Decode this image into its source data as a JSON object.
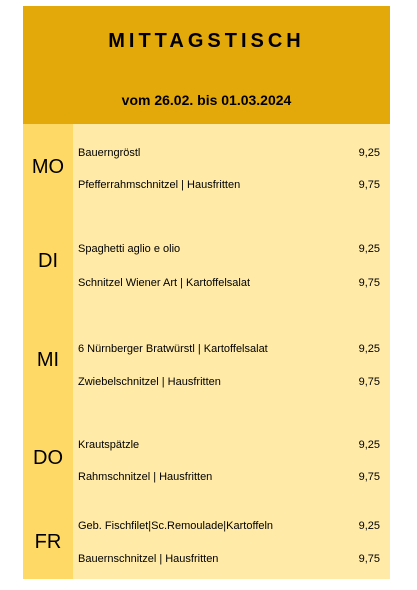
{
  "header": {
    "title": "MITTAGSTISCH",
    "subtitle": "vom 26.02. bis 01.03.2024"
  },
  "days": [
    {
      "day": "MO",
      "items": [
        {
          "name": "Bauerngröstl",
          "price": "9,25"
        },
        {
          "name": "Pfefferrahmschnitzel | Hausfritten",
          "price": "9,75"
        }
      ]
    },
    {
      "day": "DI",
      "items": [
        {
          "name": "Spaghetti aglio e olio",
          "price": "9,25"
        },
        {
          "name": "Schnitzel Wiener Art | Kartoffelsalat",
          "price": "9,75"
        }
      ]
    },
    {
      "day": "MI",
      "items": [
        {
          "name": "6 Nürnberger Bratwürstl | Kartoffelsalat",
          "price": "9,25"
        },
        {
          "name": "Zwiebelschnitzel | Hausfritten",
          "price": "9,75"
        }
      ]
    },
    {
      "day": "DO",
      "items": [
        {
          "name": "Krautspätzle",
          "price": "9,25"
        },
        {
          "name": "Rahmschnitzel | Hausfritten",
          "price": "9,75"
        }
      ]
    },
    {
      "day": "FR",
      "items": [
        {
          "name": "Geb. Fischfilet|Sc.Remoulade|Kartoffeln",
          "price": "9,25"
        },
        {
          "name": "Bauernschnitzel | Hausfritten",
          "price": "9,75"
        }
      ]
    }
  ]
}
